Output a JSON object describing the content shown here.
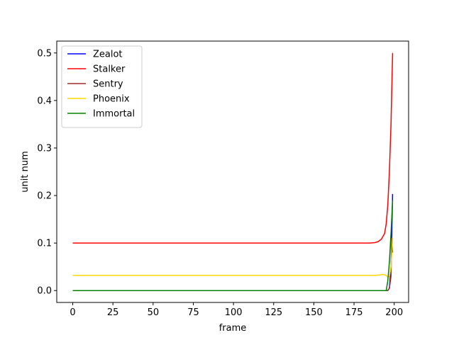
{
  "chart_data": {
    "type": "line",
    "title": "",
    "xlabel": "frame",
    "ylabel": "unit num",
    "xlim": [
      -9.95,
      208.95
    ],
    "ylim": [
      -0.025,
      0.525
    ],
    "xticks": [
      0,
      25,
      50,
      75,
      100,
      125,
      150,
      175,
      200
    ],
    "xtick_labels": [
      "0",
      "25",
      "50",
      "75",
      "100",
      "125",
      "150",
      "175",
      "200"
    ],
    "yticks": [
      0.0,
      0.1,
      0.2,
      0.3,
      0.4,
      0.5
    ],
    "ytick_labels": [
      "0.0",
      "0.1",
      "0.2",
      "0.3",
      "0.4",
      "0.5"
    ],
    "grid": false,
    "legend_position": "upper-left",
    "series": [
      {
        "name": "Zealot",
        "color": "#0000ff",
        "x": [
          0,
          194,
          196,
          197,
          198,
          198.5,
          199
        ],
        "y": [
          0.0,
          0.0,
          0.0,
          0.005,
          0.05,
          0.12,
          0.203
        ]
      },
      {
        "name": "Stalker",
        "color": "#ff0000",
        "x": [
          0,
          185,
          188,
          190,
          192,
          194,
          195,
          196,
          197,
          198,
          199
        ],
        "y": [
          0.1,
          0.1,
          0.101,
          0.103,
          0.108,
          0.12,
          0.14,
          0.18,
          0.25,
          0.35,
          0.5
        ]
      },
      {
        "name": "Sentry",
        "color": "#a52a2a",
        "x": [
          0,
          196,
          197,
          198,
          198.5,
          199
        ],
        "y": [
          0.0,
          0.0,
          0.005,
          0.03,
          0.11,
          0.08
        ]
      },
      {
        "name": "Phoenix",
        "color": "#ffd700",
        "x": [
          0,
          188,
          191,
          193,
          195,
          196,
          197,
          198,
          199
        ],
        "y": [
          0.032,
          0.032,
          0.033,
          0.034,
          0.032,
          0.028,
          0.03,
          0.05,
          0.11
        ]
      },
      {
        "name": "Immortal",
        "color": "#008000",
        "x": [
          0,
          195,
          196,
          197,
          198,
          199
        ],
        "y": [
          0.0,
          0.0,
          0.02,
          0.06,
          0.12,
          0.19
        ]
      }
    ]
  }
}
